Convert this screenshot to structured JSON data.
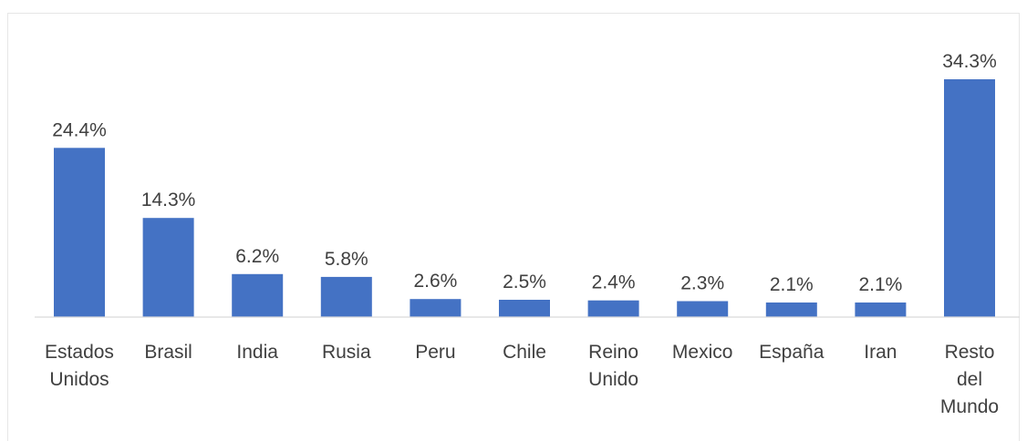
{
  "chart_data": {
    "type": "bar",
    "categories": [
      [
        "Estados",
        "Unidos"
      ],
      [
        "Brasil"
      ],
      [
        "India"
      ],
      [
        "Rusia"
      ],
      [
        "Peru"
      ],
      [
        "Chile"
      ],
      [
        "Reino",
        "Unido"
      ],
      [
        "Mexico"
      ],
      [
        "España"
      ],
      [
        "Iran"
      ],
      [
        "Resto",
        "del",
        "Mundo"
      ]
    ],
    "values": [
      24.4,
      14.3,
      6.2,
      5.8,
      2.6,
      2.5,
      2.4,
      2.3,
      2.1,
      2.1,
      34.3
    ],
    "data_labels": [
      "24.4%",
      "14.3%",
      "6.2%",
      "5.8%",
      "2.6%",
      "2.5%",
      "2.4%",
      "2.3%",
      "2.1%",
      "2.1%",
      "34.3%"
    ],
    "unit": "%",
    "title": "",
    "xlabel": "",
    "ylabel": "",
    "ylim": [
      0,
      34.3
    ],
    "grid": false,
    "legend": "none",
    "colors": {
      "bar": "#4472c4",
      "text": "#404040",
      "axis": "#d9d9d9"
    }
  }
}
